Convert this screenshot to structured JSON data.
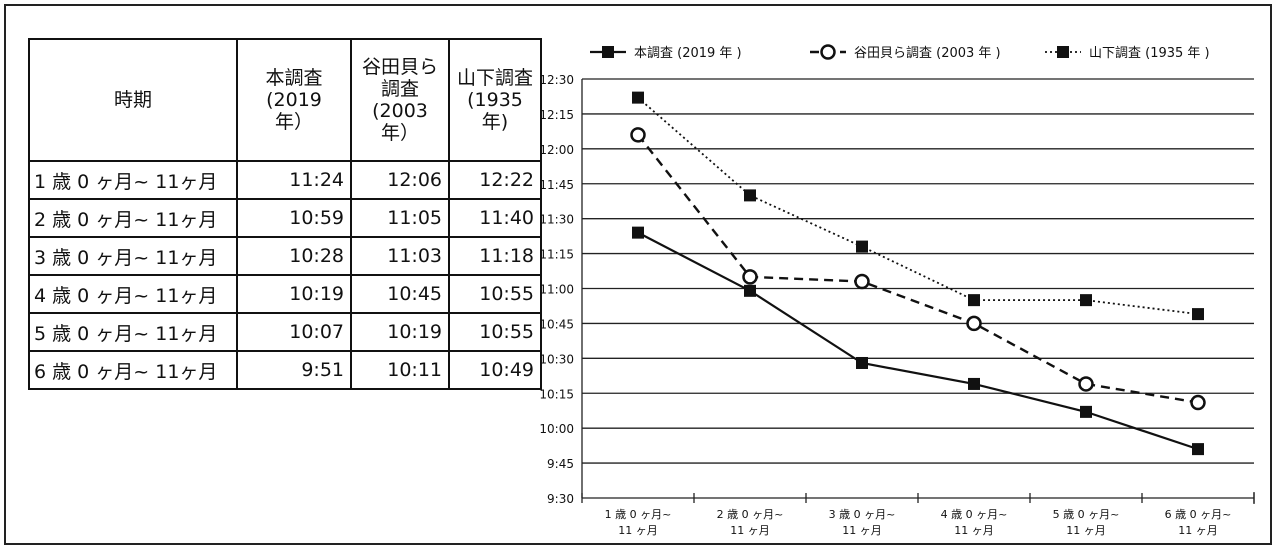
{
  "table": {
    "headers": [
      "時期",
      "本調査\n(2019\n年）",
      "谷田貝ら\n調査\n(2003\n年）",
      "山下調査\n(1935 年)"
    ],
    "rows": [
      {
        "period": "1 歳 0 ヶ月~ 11ヶ月",
        "v2019": "11:24",
        "v2003": "12:06",
        "v1935": "12:22"
      },
      {
        "period": "2 歳 0 ヶ月~ 11ヶ月",
        "v2019": "10:59",
        "v2003": "11:05",
        "v1935": "11:40"
      },
      {
        "period": "3 歳 0 ヶ月~ 11ヶ月",
        "v2019": "10:28",
        "v2003": "11:03",
        "v1935": "11:18"
      },
      {
        "period": "4 歳 0 ヶ月~ 11ヶ月",
        "v2019": "10:19",
        "v2003": "10:45",
        "v1935": "10:55"
      },
      {
        "period": "5 歳 0 ヶ月~ 11ヶ月",
        "v2019": "10:07",
        "v2003": "10:19",
        "v1935": "10:55"
      },
      {
        "period": "6 歳 0 ヶ月~ 11ヶ月",
        "v2019": "9:51",
        "v2003": "10:11",
        "v1935": "10:49"
      }
    ]
  },
  "chart_data": {
    "type": "line",
    "categories": [
      "1 歳 0 ヶ月~\n11 ヶ月",
      "2 歳 0 ヶ月~\n11 ヶ月",
      "3 歳 0 ヶ月~\n11 ヶ月",
      "4 歳 0 ヶ月~\n11 ヶ月",
      "5 歳 0 ヶ月~\n11 ヶ月",
      "6 歳 0 ヶ月~\n11 ヶ月"
    ],
    "y_ticks": [
      "9:30",
      "9:45",
      "10:00",
      "10:15",
      "10:30",
      "10:45",
      "11:00",
      "11:15",
      "11:30",
      "11:45",
      "12:00",
      "12:15",
      "12:30"
    ],
    "ylim": [
      "9:30",
      "12:30"
    ],
    "grid": true,
    "legend_position": "top",
    "series": [
      {
        "name": "本調査 (2019 年 )",
        "style": "solid",
        "marker": "filled-square",
        "values": [
          "11:24",
          "10:59",
          "10:28",
          "10:19",
          "10:07",
          "9:51"
        ]
      },
      {
        "name": "谷田貝ら調査 (2003 年 )",
        "style": "dashed",
        "marker": "open-circle",
        "values": [
          "12:06",
          "11:05",
          "11:03",
          "10:45",
          "10:19",
          "10:11"
        ]
      },
      {
        "name": "山下調査 (1935 年 )",
        "style": "dotted",
        "marker": "filled-square",
        "values": [
          "12:22",
          "11:40",
          "11:18",
          "10:55",
          "10:55",
          "10:49"
        ]
      }
    ]
  }
}
